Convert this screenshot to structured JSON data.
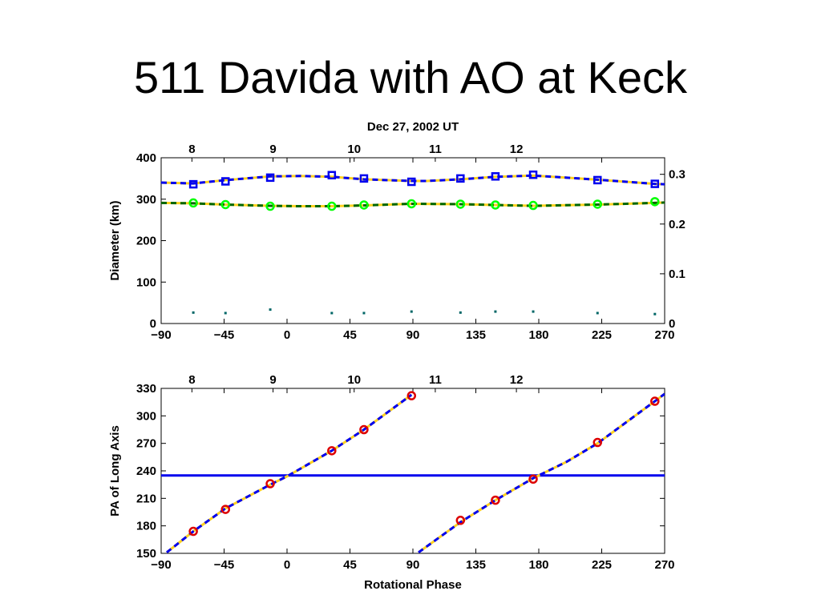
{
  "slide": {
    "title": "511 Davida with AO at Keck"
  },
  "chart_data": [
    {
      "type": "line",
      "panel": "top",
      "title": "Dec 27, 2002 UT",
      "xlabel": "",
      "ylabel": "Diameter (km)",
      "xlim": [
        -90,
        270
      ],
      "ylim": [
        0,
        400
      ],
      "xticks": [
        "−90",
        "−45",
        "0",
        "45",
        "90",
        "135",
        "180",
        "225",
        "270"
      ],
      "yticks": [
        "0",
        "100",
        "200",
        "300",
        "400"
      ],
      "right_axis": {
        "ylim": [
          0,
          0.3333
        ],
        "ticks": [
          "0",
          "0.1",
          "0.2",
          "0.3"
        ]
      },
      "top_axis": {
        "ticks": [
          "8",
          "9",
          "10",
          "11",
          "12"
        ],
        "tick_positions": [
          -68,
          -10,
          48,
          106,
          164
        ]
      },
      "grid": false,
      "series": [
        {
          "role": "long-axis-diameter",
          "marker": "square",
          "color": "#0000ee",
          "x": [
            -67,
            -44,
            -12,
            32,
            55,
            89,
            124,
            149,
            176,
            222,
            263
          ],
          "y": [
            336,
            343,
            352,
            358,
            350,
            342,
            350,
            355,
            359,
            346,
            337
          ]
        },
        {
          "role": "short-axis-diameter",
          "marker": "circle",
          "color": "#00ff00",
          "x": [
            -67,
            -44,
            -12,
            32,
            55,
            89,
            124,
            149,
            176,
            222,
            263
          ],
          "y": [
            291,
            287,
            283,
            283,
            286,
            289,
            288,
            286,
            285,
            288,
            294
          ]
        },
        {
          "role": "long-axis-model",
          "style": "dashed",
          "color": "#0000ee",
          "under_color": "#ffd21f",
          "x": [
            -90,
            -67,
            -44,
            -12,
            10,
            32,
            55,
            89,
            100,
            124,
            149,
            176,
            200,
            222,
            263,
            270
          ],
          "y": [
            340,
            338,
            346,
            355,
            356,
            354,
            348,
            344,
            344,
            348,
            354,
            357,
            352,
            347,
            337,
            336
          ]
        },
        {
          "role": "short-axis-model",
          "style": "dashed",
          "color": "#006600",
          "under_color": "#ffd21f",
          "x": [
            -90,
            -67,
            -44,
            -12,
            10,
            32,
            55,
            89,
            124,
            149,
            176,
            222,
            263,
            270
          ],
          "y": [
            291,
            290,
            287,
            284,
            283,
            283,
            285,
            289,
            288,
            286,
            284,
            287,
            291,
            292
          ]
        },
        {
          "role": "right-axis-points",
          "axis": "right",
          "marker": "dot",
          "color": "#006666",
          "x": [
            -67,
            -44,
            -12,
            32,
            55,
            89,
            124,
            149,
            176,
            222,
            263
          ],
          "y": [
            0.022,
            0.021,
            0.028,
            0.021,
            0.021,
            0.024,
            0.022,
            0.024,
            0.024,
            0.021,
            0.019
          ]
        }
      ]
    },
    {
      "type": "line",
      "panel": "bottom",
      "title": "",
      "xlabel": "Rotational Phase",
      "ylabel": "PA of Long Axis",
      "xlim": [
        -90,
        270
      ],
      "ylim": [
        150,
        330
      ],
      "xticks": [
        "−90",
        "−45",
        "0",
        "45",
        "90",
        "135",
        "180",
        "225",
        "270"
      ],
      "yticks": [
        "150",
        "180",
        "210",
        "240",
        "270",
        "300",
        "330"
      ],
      "top_axis": {
        "ticks": [
          "8",
          "9",
          "10",
          "11",
          "12"
        ],
        "tick_positions": [
          -68,
          -10,
          48,
          106,
          164
        ]
      },
      "grid": false,
      "hline": {
        "y": 235,
        "color": "#0000ee"
      },
      "series": [
        {
          "role": "pa-observed",
          "marker": "circle",
          "color": "#dd0000",
          "x": [
            -67,
            -44,
            -12,
            32,
            55,
            89,
            124,
            149,
            176,
            222,
            263
          ],
          "y": [
            174,
            198,
            226,
            262,
            285,
            322,
            186,
            208,
            231,
            271,
            316
          ]
        },
        {
          "role": "pa-model-1",
          "style": "dashed",
          "color": "#0000ee",
          "under_color": "#ffd21f",
          "x": [
            -86,
            -67,
            -44,
            -12,
            0,
            32,
            55,
            89
          ],
          "y": [
            151,
            174,
            199,
            225,
            234,
            262,
            285,
            323
          ]
        },
        {
          "role": "pa-model-2",
          "style": "dashed",
          "color": "#0000ee",
          "under_color": "#ffd21f",
          "x": [
            94,
            124,
            149,
            176,
            200,
            222,
            263,
            270
          ],
          "y": [
            151,
            184,
            208,
            232,
            250,
            270,
            316,
            324
          ]
        }
      ]
    }
  ]
}
